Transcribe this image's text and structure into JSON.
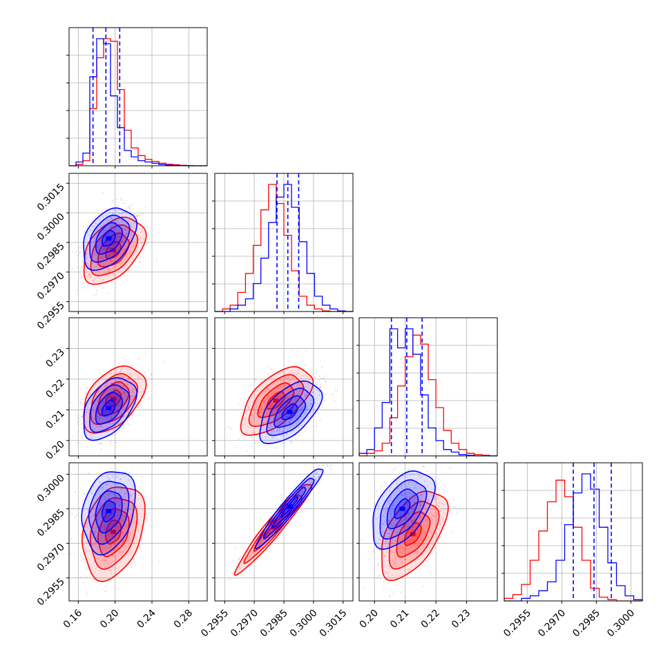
{
  "chart_data": {
    "type": "corner",
    "description_free": true,
    "series": [
      {
        "name": "",
        "color": "#0000ff"
      },
      {
        "name": "",
        "color": "#ff0000"
      }
    ],
    "parameters": [
      {
        "range": [
          0.15,
          0.3
        ],
        "ticks": [
          0.16,
          0.2,
          0.24,
          0.28
        ],
        "tick_labels": [
          "0.16",
          "0.20",
          "0.24",
          "0.28"
        ]
      },
      {
        "range": [
          0.295,
          0.302
        ],
        "ticks": [
          0.2955,
          0.297,
          0.2985,
          0.3,
          0.3015
        ],
        "tick_labels": [
          "0.2955",
          "0.2970",
          "0.2985",
          "0.3000",
          "0.3015"
        ]
      },
      {
        "range": [
          0.195,
          0.24
        ],
        "ticks": [
          0.2,
          0.21,
          0.22,
          0.23
        ],
        "tick_labels": [
          "0.20",
          "0.21",
          "0.22",
          "0.23"
        ]
      },
      {
        "range": [
          0.2945,
          0.3005
        ],
        "ticks": [
          0.2955,
          0.297,
          0.2985,
          0.3
        ],
        "tick_labels": [
          "0.2955",
          "0.2970",
          "0.2985",
          "0.3000"
        ]
      }
    ],
    "marginals": [
      {
        "quantile_lines": [
          0.176,
          0.19,
          0.205
        ],
        "blue": {
          "edges_start": 0.15,
          "edges_end": 0.3,
          "counts": [
            0,
            0.03,
            0.1,
            0.7,
            1.0,
            0.96,
            0.55,
            0.3,
            0.12,
            0.07,
            0.04,
            0.03,
            0.02,
            0.01,
            0.005,
            0.003,
            0.002,
            0,
            0,
            0
          ]
        },
        "red": {
          "edges_start": 0.15,
          "edges_end": 0.3,
          "counts": [
            0,
            0.01,
            0.04,
            0.45,
            0.85,
            1.0,
            0.98,
            0.6,
            0.28,
            0.14,
            0.08,
            0.05,
            0.035,
            0.02,
            0.012,
            0.008,
            0.004,
            0.002,
            0,
            0
          ]
        }
      },
      {
        "quantile_lines": [
          0.29815,
          0.2987,
          0.29925
        ],
        "blue": {
          "edges_start": 0.295,
          "edges_end": 0.302,
          "counts": [
            0,
            0,
            0.02,
            0.05,
            0.1,
            0.22,
            0.42,
            0.7,
            0.9,
            1.0,
            0.82,
            0.55,
            0.3,
            0.12,
            0.05,
            0.02,
            0.005,
            0
          ]
        },
        "red": {
          "edges_start": 0.295,
          "edges_end": 0.302,
          "counts": [
            0,
            0.02,
            0.05,
            0.15,
            0.3,
            0.52,
            0.8,
            1.0,
            0.85,
            0.6,
            0.32,
            0.12,
            0.05,
            0.02,
            0.005,
            0,
            0,
            0
          ]
        }
      },
      {
        "quantile_lines": [
          0.2055,
          0.2105,
          0.2155
        ],
        "blue": {
          "edges_start": 0.195,
          "edges_end": 0.24,
          "counts": [
            0.02,
            0.05,
            0.22,
            0.42,
            1.0,
            0.85,
            1.0,
            0.8,
            0.48,
            0.22,
            0.12,
            0.05,
            0.03,
            0.01,
            0.005,
            0,
            0,
            0
          ]
        },
        "red": {
          "edges_start": 0.195,
          "edges_end": 0.24,
          "counts": [
            0,
            0.02,
            0.04,
            0.1,
            0.3,
            0.55,
            0.78,
            0.95,
            0.88,
            0.6,
            0.38,
            0.2,
            0.1,
            0.05,
            0.02,
            0.01,
            0.005,
            0
          ]
        }
      },
      {
        "quantile_lines": [
          0.2975,
          0.2984,
          0.29915
        ],
        "blue": {
          "edges_start": 0.2945,
          "edges_end": 0.3005,
          "counts": [
            0,
            0,
            0.02,
            0.04,
            0.08,
            0.15,
            0.32,
            0.6,
            0.85,
            1.0,
            0.88,
            0.58,
            0.3,
            0.12,
            0.04,
            0.01
          ]
        },
        "red": {
          "edges_start": 0.2945,
          "edges_end": 0.3005,
          "counts": [
            0.02,
            0.05,
            0.13,
            0.32,
            0.55,
            0.78,
            0.95,
            0.82,
            0.58,
            0.32,
            0.1,
            0.03,
            0.01,
            0,
            0,
            0
          ]
        }
      }
    ],
    "joint": [
      {
        "row": 1,
        "col": 0,
        "blue": {
          "mean": [
            0.193,
            0.2987
          ],
          "sd": [
            0.012,
            0.00065
          ],
          "rho": 0.4
        },
        "red": {
          "mean": [
            0.198,
            0.2981
          ],
          "sd": [
            0.014,
            0.0007
          ],
          "rho": 0.45
        }
      },
      {
        "row": 2,
        "col": 0,
        "blue": {
          "mean": [
            0.193,
            0.2105
          ],
          "sd": [
            0.012,
            0.0042
          ],
          "rho": 0.45
        },
        "red": {
          "mean": [
            0.198,
            0.2135
          ],
          "sd": [
            0.014,
            0.0045
          ],
          "rho": 0.45
        }
      },
      {
        "row": 2,
        "col": 1,
        "blue": {
          "mean": [
            0.2988,
            0.2093
          ],
          "sd": [
            0.00065,
            0.0042
          ],
          "rho": 0.55
        },
        "red": {
          "mean": [
            0.2981,
            0.213
          ],
          "sd": [
            0.00075,
            0.0046
          ],
          "rho": 0.6
        }
      },
      {
        "row": 3,
        "col": 0,
        "blue": {
          "mean": [
            0.193,
            0.2984
          ],
          "sd": [
            0.012,
            0.00075
          ],
          "rho": 0.25
        },
        "red": {
          "mean": [
            0.198,
            0.2975
          ],
          "sd": [
            0.014,
            0.00085
          ],
          "rho": 0.3
        }
      },
      {
        "row": 3,
        "col": 1,
        "blue": {
          "mean": [
            0.2988,
            0.2986
          ],
          "sd": [
            0.0007,
            0.00072
          ],
          "rho": 0.96
        },
        "red": {
          "mean": [
            0.298,
            0.2977
          ],
          "sd": [
            0.0008,
            0.00082
          ],
          "rho": 0.96
        }
      },
      {
        "row": 3,
        "col": 2,
        "blue": {
          "mean": [
            0.209,
            0.2985
          ],
          "sd": [
            0.0042,
            0.0007
          ],
          "rho": 0.5
        },
        "red": {
          "mean": [
            0.2125,
            0.2974
          ],
          "sd": [
            0.0045,
            0.0008
          ],
          "rho": 0.55
        }
      }
    ],
    "grid": true,
    "legend": "none"
  }
}
